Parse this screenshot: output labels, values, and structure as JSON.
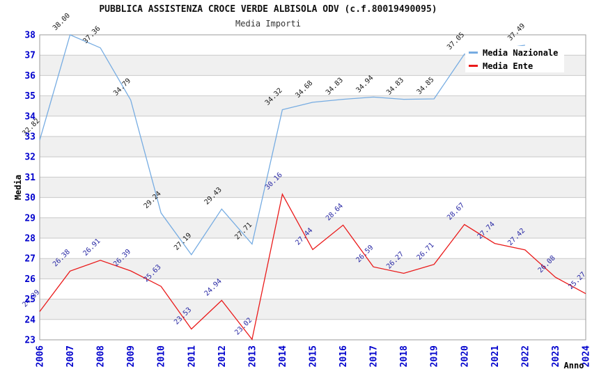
{
  "header": {
    "title": "PUBBLICA ASSISTENZA CROCE VERDE ALBISOLA ODV (c.f.80019490095)",
    "subtitle": "Media Importi"
  },
  "legend": {
    "items": [
      {
        "label": "Media Nazionale",
        "color": "#76ACE2"
      },
      {
        "label": "Media Ente",
        "color": "#EA1A1A"
      }
    ]
  },
  "axes": {
    "y_label": "Media",
    "x_label": "Anno",
    "tick_color": "#0000CD",
    "y_ticks": [
      23,
      24,
      25,
      26,
      27,
      28,
      29,
      30,
      31,
      32,
      33,
      34,
      35,
      36,
      37,
      38
    ],
    "x_ticks": [
      "2006",
      "2007",
      "2008",
      "2009",
      "2010",
      "2011",
      "2012",
      "2013",
      "2014",
      "2015",
      "2016",
      "2017",
      "2018",
      "2019",
      "2020",
      "2021",
      "2022",
      "2023",
      "2024"
    ]
  },
  "chart_data": {
    "type": "line",
    "title": "PUBBLICA ASSISTENZA CROCE VERDE ALBISOLA ODV (c.f.80019490095)",
    "subtitle": "Media Importi",
    "xlabel": "Anno",
    "ylabel": "Media",
    "ylim": [
      23,
      38
    ],
    "x": [
      2006,
      2007,
      2008,
      2009,
      2010,
      2011,
      2012,
      2013,
      2014,
      2015,
      2016,
      2017,
      2018,
      2019,
      2020,
      2021,
      2022,
      2023,
      2024
    ],
    "grid": "horizontal-only",
    "background_bands": "alternating-gray",
    "legend_position": "top-right",
    "colors": {
      "band": "#F0F0F0",
      "grid": "#C9C9C9",
      "border": "#9B9B9B"
    },
    "series": [
      {
        "name": "Media Nazionale",
        "color": "#76ACE2",
        "label_color": "#1A1A1A",
        "values": [
          [
            2006,
            32.82
          ],
          [
            2007,
            38.0
          ],
          [
            2008,
            37.36
          ],
          [
            2009,
            34.79
          ],
          [
            2010,
            29.24
          ],
          [
            2011,
            27.19
          ],
          [
            2012,
            29.43
          ],
          [
            2013,
            27.71
          ],
          [
            2014,
            34.32
          ],
          [
            2015,
            34.68
          ],
          [
            2016,
            34.83
          ],
          [
            2017,
            34.94
          ],
          [
            2018,
            34.83
          ],
          [
            2019,
            34.85
          ],
          [
            2020,
            37.05
          ],
          [
            2022,
            37.49
          ]
        ]
      },
      {
        "name": "Media Ente",
        "color": "#EA1A1A",
        "label_color": "#2A2AA5",
        "values": [
          [
            2006,
            24.39
          ],
          [
            2007,
            26.38
          ],
          [
            2008,
            26.91
          ],
          [
            2009,
            26.39
          ],
          [
            2010,
            25.63
          ],
          [
            2011,
            23.53
          ],
          [
            2012,
            24.94
          ],
          [
            2013,
            23.02
          ],
          [
            2014,
            30.16
          ],
          [
            2015,
            27.44
          ],
          [
            2016,
            28.64
          ],
          [
            2017,
            26.59
          ],
          [
            2018,
            26.27
          ],
          [
            2019,
            26.71
          ],
          [
            2020,
            28.67
          ],
          [
            2021,
            27.74
          ],
          [
            2022,
            27.42
          ],
          [
            2023,
            26.08
          ],
          [
            2024,
            25.27
          ]
        ]
      }
    ]
  }
}
